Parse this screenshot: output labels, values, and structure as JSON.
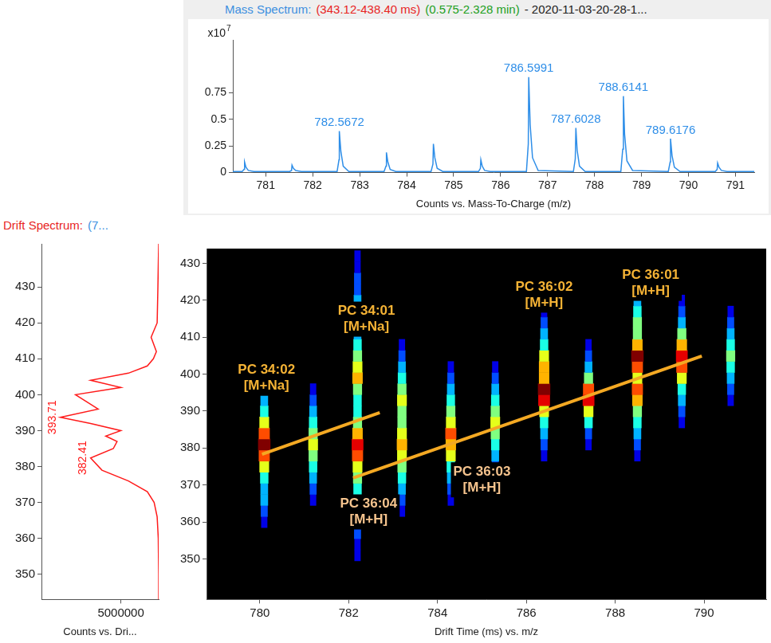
{
  "chart_data": [
    {
      "type": "line",
      "title": [
        {
          "text": "Mass Spectrum:",
          "color": "#3d8fe0"
        },
        {
          "text": "(343.12-438.40 ms)",
          "color": "#e8251f"
        },
        {
          "text": "(0.575-2.328 min)",
          "color": "#22a022"
        },
        {
          "text": "- 2020-11-03-20-28-1...",
          "color": "#222222"
        }
      ],
      "xlabel": "Counts vs. Mass-To-Charge (m/z)",
      "ylabel": "x10 7",
      "color": "#2e8ee8",
      "grid": false,
      "x": [
        780.3,
        780.5,
        780.54,
        780.55,
        780.58,
        780.63,
        780.75,
        781.51,
        781.55,
        781.56,
        781.59,
        781.64,
        781.76,
        782.52,
        782.56,
        782.5672,
        782.6,
        782.65,
        782.77,
        783.52,
        783.56,
        783.57,
        783.6,
        783.65,
        783.77,
        784.52,
        784.56,
        784.57,
        784.6,
        784.65,
        784.77,
        785.53,
        785.57,
        785.58,
        785.61,
        785.66,
        785.78,
        786.55,
        786.59,
        786.5991,
        786.63,
        786.68,
        786.8,
        787.55,
        787.59,
        787.6028,
        787.63,
        787.68,
        787.8,
        788.56,
        788.6,
        788.6141,
        788.64,
        788.69,
        788.81,
        789.57,
        789.61,
        789.6176,
        789.65,
        789.7,
        789.82,
        790.57,
        790.61,
        790.62,
        790.65,
        790.7,
        790.82,
        791.4
      ],
      "values": [
        0.01,
        0.01,
        0.03,
        0.1,
        0.05,
        0.02,
        0.01,
        0.01,
        0.02,
        0.07,
        0.04,
        0.02,
        0.01,
        0.01,
        0.12,
        0.39,
        0.2,
        0.06,
        0.01,
        0.01,
        0.06,
        0.19,
        0.1,
        0.03,
        0.01,
        0.01,
        0.08,
        0.27,
        0.14,
        0.04,
        0.01,
        0.01,
        0.04,
        0.12,
        0.06,
        0.02,
        0.01,
        0.01,
        0.27,
        0.9,
        0.45,
        0.14,
        0.02,
        0.01,
        0.13,
        0.42,
        0.21,
        0.06,
        0.01,
        0.01,
        0.22,
        0.72,
        0.36,
        0.11,
        0.02,
        0.01,
        0.1,
        0.32,
        0.16,
        0.05,
        0.01,
        0.01,
        0.03,
        0.09,
        0.05,
        0.02,
        0.01,
        0.01
      ],
      "peak_labels": [
        782.5672,
        786.5991,
        787.6028,
        788.6141,
        789.6176
      ],
      "xlim": [
        780.3,
        791.4
      ],
      "xticks": [
        781,
        782,
        783,
        784,
        785,
        786,
        787,
        788,
        789,
        790,
        791
      ],
      "ylim": [
        0,
        1.25
      ],
      "yticks": [
        0,
        0.25,
        0.5,
        0.75
      ]
    },
    {
      "type": "line",
      "title": [
        {
          "text": "Drift Spectrum:",
          "color": "#e8251f"
        },
        {
          "text": "(7...",
          "color": "#3d8fe0"
        }
      ],
      "xlabel": "Counts vs. Dri...",
      "color": "#ff1a1a",
      "grid": false,
      "x": [
        0,
        0,
        50000,
        200000,
        600000,
        1500000,
        4000000,
        7500000,
        9000000,
        6000000,
        5500000,
        7000000,
        5000000,
        9000000,
        13000000,
        8000000,
        9500000,
        11000000,
        5000000,
        9000000,
        4000000,
        1500000,
        700000,
        300000,
        1000000,
        200000,
        100000,
        0
      ],
      "y": [
        343,
        350,
        360,
        366,
        370,
        373,
        376,
        379,
        382.41,
        385,
        387,
        388.5,
        390,
        392,
        393.71,
        396,
        398,
        400,
        402,
        404,
        406,
        408,
        410,
        412,
        416,
        420,
        430,
        442
      ],
      "peak_labels": [
        382.41,
        393.71
      ],
      "xlim": [
        15500000,
        0
      ],
      "xticks": [
        5000000
      ],
      "ylim": [
        343,
        442
      ],
      "yticks": [
        350,
        360,
        370,
        380,
        390,
        400,
        410,
        420,
        430
      ]
    },
    {
      "type": "heatmap",
      "xlabel": "Drift Time (ms) vs. m/z",
      "grid": false,
      "xlim": [
        778.8,
        791.4
      ],
      "xticks": [
        780,
        782,
        784,
        786,
        788,
        790
      ],
      "ylim": [
        339,
        434
      ],
      "yticks": [
        350,
        360,
        370,
        380,
        390,
        400,
        410,
        420,
        430
      ],
      "cells": {
        "x": [
          780.1,
          781.2,
          782.2,
          783.2,
          784.3,
          785.3,
          786.4,
          787.4,
          788.5,
          789.5,
          790.6
        ],
        "y": [
          345,
          348,
          351,
          354,
          357,
          360,
          363,
          366,
          369,
          372,
          375,
          378,
          381,
          384,
          387,
          390,
          393,
          396,
          399,
          402,
          405,
          408,
          411,
          414,
          417,
          420,
          423,
          426,
          429,
          432
        ],
        "values": [
          [
            0,
            0,
            0,
            0,
            0,
            0.1,
            0.2,
            0.3,
            0.3,
            0.4,
            0.6,
            0.8,
            1.0,
            0.8,
            0.6,
            0.4,
            0.3,
            0.2,
            0.1,
            0,
            0,
            0,
            0,
            0,
            0,
            0,
            0,
            0,
            0,
            0
          ],
          [
            0,
            0,
            0,
            0,
            0,
            0,
            0,
            0.1,
            0.2,
            0.3,
            0.4,
            0.5,
            0.6,
            0.5,
            0.4,
            0.3,
            0.2,
            0.1,
            0,
            0,
            0,
            0,
            0,
            0,
            0,
            0,
            0,
            0,
            0,
            0
          ],
          [
            0,
            0,
            0.1,
            0.1,
            0.2,
            0.2,
            0.3,
            0.3,
            0.4,
            0.5,
            0.6,
            0.8,
            0.9,
            0.7,
            0.5,
            0.4,
            0.4,
            0.5,
            0.7,
            0.6,
            0.5,
            0.4,
            0.3,
            0.3,
            0.4,
            0.3,
            0.2,
            0.2,
            0.1,
            0.1
          ],
          [
            0,
            0,
            0,
            0,
            0,
            0,
            0.1,
            0.2,
            0.3,
            0.4,
            0.5,
            0.6,
            0.7,
            0.6,
            0.5,
            0.5,
            0.6,
            0.5,
            0.4,
            0.3,
            0.2,
            0.1,
            0,
            0,
            0,
            0,
            0,
            0,
            0,
            0
          ],
          [
            0,
            0,
            0,
            0,
            0,
            0,
            0,
            0.1,
            0.2,
            0.3,
            0.4,
            0.6,
            0.7,
            0.8,
            0.6,
            0.5,
            0.4,
            0.3,
            0.2,
            0.1,
            0,
            0,
            0,
            0,
            0,
            0,
            0,
            0,
            0,
            0
          ],
          [
            0,
            0,
            0,
            0,
            0,
            0,
            0,
            0,
            0,
            0.1,
            0.2,
            0.3,
            0.4,
            0.5,
            0.6,
            0.5,
            0.4,
            0.3,
            0.2,
            0.1,
            0,
            0,
            0,
            0,
            0,
            0,
            0,
            0,
            0,
            0
          ],
          [
            0,
            0,
            0,
            0,
            0,
            0,
            0,
            0,
            0,
            0,
            0,
            0.1,
            0.2,
            0.3,
            0.4,
            0.6,
            0.9,
            1.0,
            0.7,
            0.7,
            0.6,
            0.4,
            0.3,
            0.2,
            0.1,
            0,
            0,
            0,
            0,
            0
          ],
          [
            0,
            0,
            0,
            0,
            0,
            0,
            0,
            0,
            0,
            0,
            0,
            0,
            0.1,
            0.2,
            0.4,
            0.6,
            0.9,
            0.8,
            0.5,
            0.3,
            0.2,
            0.1,
            0,
            0,
            0,
            0,
            0,
            0,
            0,
            0
          ],
          [
            0,
            0,
            0,
            0,
            0,
            0,
            0,
            0,
            0,
            0,
            0,
            0.1,
            0.2,
            0.3,
            0.4,
            0.5,
            0.7,
            0.8,
            0.6,
            0.8,
            1.0,
            0.7,
            0.5,
            0.5,
            0.4,
            0.3,
            0.2,
            0.1,
            0,
            0
          ],
          [
            0,
            0,
            0,
            0,
            0,
            0,
            0,
            0,
            0,
            0,
            0,
            0,
            0,
            0,
            0.1,
            0.2,
            0.3,
            0.4,
            0.6,
            0.8,
            0.9,
            0.7,
            0.5,
            0.3,
            0.2,
            0.1,
            0,
            0,
            0,
            0
          ],
          [
            0,
            0,
            0,
            0,
            0,
            0,
            0,
            0,
            0,
            0,
            0,
            0,
            0,
            0,
            0,
            0,
            0.1,
            0.2,
            0.3,
            0.4,
            0.5,
            0.4,
            0.3,
            0.2,
            0.1,
            0,
            0,
            0,
            0,
            0
          ]
        ]
      },
      "lines": [
        {
          "x": [
            780.05,
            782.7
          ],
          "y": [
            378.3,
            389.6
          ],
          "color": "#f4a923"
        },
        {
          "x": [
            782.1,
            789.95
          ],
          "y": [
            371.9,
            404.9
          ],
          "color": "#f4a923"
        }
      ],
      "annotations": [
        {
          "text": [
            "PC 34:02",
            "[M+Na]"
          ],
          "x": 780.15,
          "y": 398.9,
          "color": "#f5b335"
        },
        {
          "text": [
            "PC 34:01",
            "[M+Na]"
          ],
          "x": 782.4,
          "y": 414.9,
          "color": "#f5b335"
        },
        {
          "text": [
            "PC 36:04",
            "[M+H]"
          ],
          "x": 782.45,
          "y": 362.7,
          "color": "#f6c48e"
        },
        {
          "text": [
            "PC 36:03",
            "[M+H]"
          ],
          "x": 785.0,
          "y": 371.4,
          "color": "#f6c48e"
        },
        {
          "text": [
            "PC 36:02",
            "[M+H]"
          ],
          "x": 786.4,
          "y": 421.4,
          "color": "#f5b335"
        },
        {
          "text": [
            "PC 36:01",
            "[M+H]"
          ],
          "x": 788.8,
          "y": 424.6,
          "color": "#f5b335"
        }
      ]
    }
  ]
}
